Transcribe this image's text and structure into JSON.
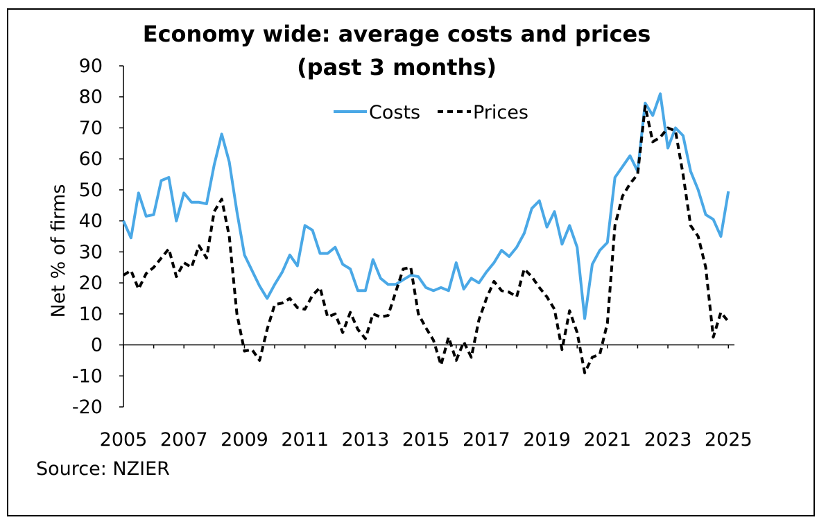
{
  "chart_data": {
    "type": "line",
    "title_line1": "Economy wide: average costs and prices",
    "title_line2": "(past 3 months)",
    "ylabel": "Net % of firms",
    "source": "Source: NZIER",
    "xlim": [
      2005,
      2025.2
    ],
    "ylim": [
      -20,
      90
    ],
    "y_ticks": [
      90,
      80,
      70,
      60,
      50,
      40,
      30,
      20,
      10,
      0,
      -10,
      -20
    ],
    "x_tick_labels": [
      "2005",
      "2007",
      "2009",
      "2011",
      "2013",
      "2015",
      "2017",
      "2019",
      "2021",
      "2023",
      "2025"
    ],
    "legend_position": "top-center",
    "series": [
      {
        "name": "Costs",
        "color": "#4aa8e6",
        "style": "solid",
        "x": [
          2005.0,
          2005.25,
          2005.5,
          2005.75,
          2006.0,
          2006.25,
          2006.5,
          2006.75,
          2007.0,
          2007.25,
          2007.5,
          2007.75,
          2008.0,
          2008.25,
          2008.5,
          2008.75,
          2009.0,
          2009.25,
          2009.5,
          2009.75,
          2010.0,
          2010.25,
          2010.5,
          2010.75,
          2011.0,
          2011.25,
          2011.5,
          2011.75,
          2012.0,
          2012.25,
          2012.5,
          2012.75,
          2013.0,
          2013.25,
          2013.5,
          2013.75,
          2014.0,
          2014.25,
          2014.5,
          2014.75,
          2015.0,
          2015.25,
          2015.5,
          2015.75,
          2016.0,
          2016.25,
          2016.5,
          2016.75,
          2017.0,
          2017.25,
          2017.5,
          2017.75,
          2018.0,
          2018.25,
          2018.5,
          2018.75,
          2019.0,
          2019.25,
          2019.5,
          2019.75,
          2020.0,
          2020.25,
          2020.5,
          2020.75,
          2021.0,
          2021.25,
          2021.5,
          2021.75,
          2022.0,
          2022.25,
          2022.5,
          2022.75,
          2023.0,
          2023.25,
          2023.5,
          2023.75,
          2024.0,
          2024.25,
          2024.5,
          2024.75,
          2025.0
        ],
        "values": [
          40,
          34.5,
          49,
          41.5,
          42,
          53,
          54,
          40,
          49,
          46,
          46,
          45.5,
          58,
          68,
          59,
          43,
          29,
          24,
          19,
          15,
          19.5,
          23.5,
          29,
          25.5,
          38.5,
          37,
          29.5,
          29.5,
          31.5,
          26,
          24.5,
          17.5,
          17.5,
          27.5,
          21.5,
          19.5,
          19.5,
          21,
          22.5,
          22,
          18.5,
          17.5,
          18.5,
          17.5,
          26.5,
          18,
          21.5,
          20,
          23.5,
          26.5,
          30.5,
          28.5,
          31.5,
          36,
          44,
          46.5,
          38,
          43,
          32.5,
          38.5,
          31.5,
          8.5,
          26,
          30.5,
          33,
          54,
          57.5,
          61,
          56,
          78,
          74,
          81,
          63.5,
          70,
          67.5,
          56,
          50,
          42,
          40.5,
          35,
          49.5
        ]
      },
      {
        "name": "Prices",
        "color": "#000000",
        "style": "dashed",
        "x": [
          2005.0,
          2005.25,
          2005.5,
          2005.75,
          2006.0,
          2006.25,
          2006.5,
          2006.75,
          2007.0,
          2007.25,
          2007.5,
          2007.75,
          2008.0,
          2008.25,
          2008.5,
          2008.75,
          2009.0,
          2009.25,
          2009.5,
          2009.75,
          2010.0,
          2010.25,
          2010.5,
          2010.75,
          2011.0,
          2011.25,
          2011.5,
          2011.75,
          2012.0,
          2012.25,
          2012.5,
          2012.75,
          2013.0,
          2013.25,
          2013.5,
          2013.75,
          2014.0,
          2014.25,
          2014.5,
          2014.75,
          2015.0,
          2015.25,
          2015.5,
          2015.75,
          2016.0,
          2016.25,
          2016.5,
          2016.75,
          2017.0,
          2017.25,
          2017.5,
          2017.75,
          2018.0,
          2018.25,
          2018.5,
          2018.75,
          2019.0,
          2019.25,
          2019.5,
          2019.75,
          2020.0,
          2020.25,
          2020.5,
          2020.75,
          2021.0,
          2021.25,
          2021.5,
          2021.75,
          2022.0,
          2022.25,
          2022.5,
          2022.75,
          2023.0,
          2023.25,
          2023.5,
          2023.75,
          2024.0,
          2024.25,
          2024.5,
          2024.75,
          2025.0
        ],
        "values": [
          22.5,
          24,
          18,
          23,
          25,
          28,
          31,
          22,
          26.5,
          25,
          32,
          28,
          43,
          47,
          35,
          10,
          -2,
          -1.5,
          -5,
          5,
          13,
          13.5,
          15,
          12,
          11.5,
          16,
          18.5,
          9,
          10,
          4,
          10.5,
          5,
          2,
          10,
          9,
          9.5,
          17,
          24.5,
          25,
          10,
          5.5,
          1.5,
          -6.5,
          2.5,
          -5,
          1,
          -4,
          8,
          15,
          20.5,
          17.5,
          17,
          15.5,
          24.5,
          22,
          18.5,
          15.5,
          11.5,
          -1.5,
          11,
          4,
          -9,
          -4,
          -3,
          7,
          38.5,
          48,
          52,
          55,
          77,
          65.5,
          67,
          70,
          69,
          55,
          38.5,
          35,
          25,
          2.5,
          10.5,
          7.5
        ]
      }
    ]
  }
}
